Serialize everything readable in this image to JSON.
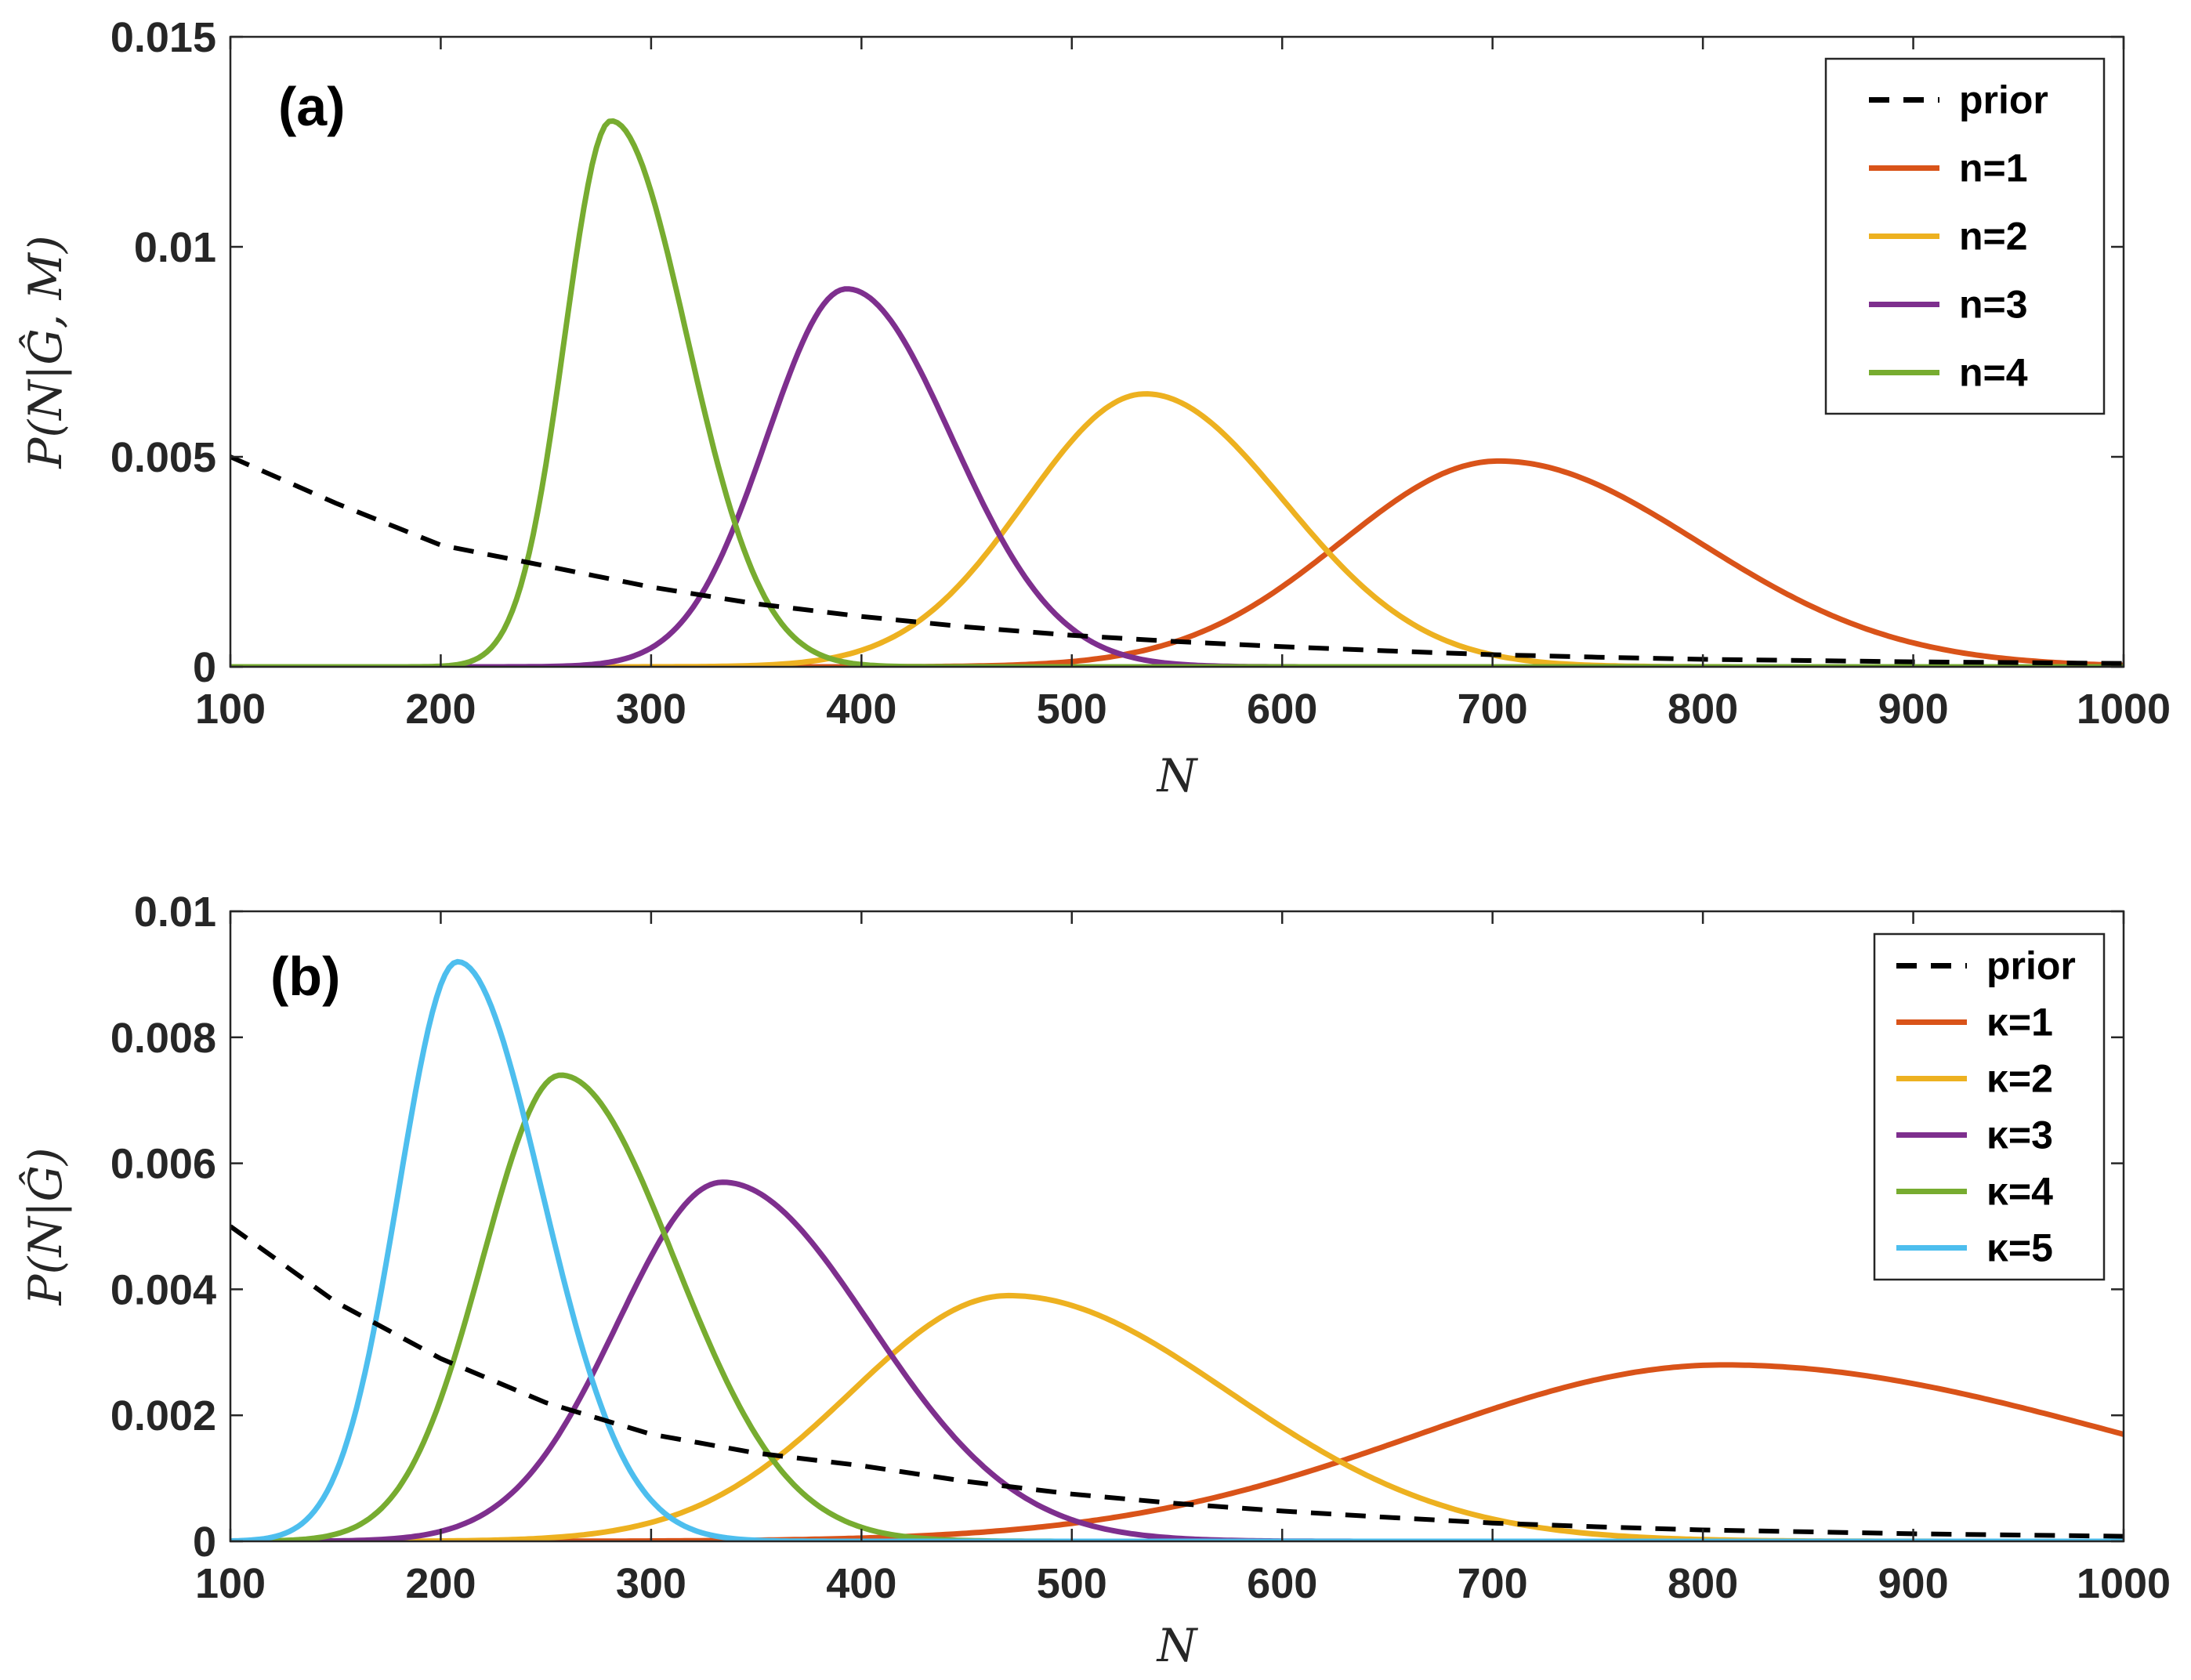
{
  "colors": {
    "prior": "#000000",
    "orange": "#D95319",
    "yellow": "#EDB120",
    "purple": "#7E2F8E",
    "green": "#77AC30",
    "cyan": "#4DBEEE",
    "axis": "#262626"
  },
  "chart_data": [
    {
      "id": "a",
      "type": "line",
      "panel_label": "(a)",
      "xlabel": "N",
      "ylabel": "P(N|Ĝ, M)",
      "xlim": [
        100,
        1000
      ],
      "ylim": [
        0,
        0.015
      ],
      "xticks": [
        100,
        200,
        300,
        400,
        500,
        600,
        700,
        800,
        900,
        1000
      ],
      "yticks": [
        0,
        0.005,
        0.01,
        0.015
      ],
      "ytick_labels": [
        "0",
        "0.005",
        "0.01",
        "0.015"
      ],
      "legend_position": "top-right",
      "prior": {
        "name": "prior",
        "style": "dashed",
        "x": [
          100,
          150,
          200,
          250,
          300,
          350,
          400,
          450,
          500,
          550,
          600,
          650,
          700,
          750,
          800,
          850,
          900,
          950,
          1000
        ],
        "y": [
          0.005,
          0.0039,
          0.0029,
          0.0024,
          0.0019,
          0.0015,
          0.0012,
          0.00095,
          0.00075,
          0.0006,
          0.00048,
          0.00038,
          0.00029,
          0.00023,
          0.00018,
          0.00015,
          0.00012,
          0.0001,
          8e-05
        ]
      },
      "series": [
        {
          "name": "n=1",
          "color_key": "orange",
          "peak_x": 703,
          "peak_y": 0.0049,
          "sigma_left": 75,
          "sigma_right": 95
        },
        {
          "name": "n=2",
          "color_key": "yellow",
          "peak_x": 535,
          "peak_y": 0.0065,
          "sigma_left": 57,
          "sigma_right": 66
        },
        {
          "name": "n=3",
          "color_key": "purple",
          "peak_x": 393,
          "peak_y": 0.009,
          "sigma_left": 38,
          "sigma_right": 50
        },
        {
          "name": "n=4",
          "color_key": "green",
          "peak_x": 281,
          "peak_y": 0.013,
          "sigma_left": 22,
          "sigma_right": 36
        }
      ]
    },
    {
      "id": "b",
      "type": "line",
      "panel_label": "(b)",
      "xlabel": "N",
      "ylabel": "P(N|Ĝ)",
      "xlim": [
        100,
        1000
      ],
      "ylim": [
        0,
        0.01
      ],
      "xticks": [
        100,
        200,
        300,
        400,
        500,
        600,
        700,
        800,
        900,
        1000
      ],
      "yticks": [
        0,
        0.002,
        0.004,
        0.006,
        0.008,
        0.01
      ],
      "ytick_labels": [
        "0",
        "0.002",
        "0.004",
        "0.006",
        "0.008",
        "0.01"
      ],
      "legend_position": "top-right",
      "prior": {
        "name": "prior",
        "style": "dashed",
        "x": [
          100,
          150,
          200,
          250,
          300,
          350,
          400,
          450,
          500,
          550,
          600,
          650,
          700,
          750,
          800,
          850,
          900,
          950,
          1000
        ],
        "y": [
          0.005,
          0.0038,
          0.0029,
          0.0022,
          0.0017,
          0.0014,
          0.0012,
          0.00095,
          0.00075,
          0.0006,
          0.00048,
          0.00038,
          0.00029,
          0.00023,
          0.00018,
          0.00015,
          0.00012,
          0.0001,
          8e-05
        ]
      },
      "series": [
        {
          "name": "κ=1",
          "color_key": "orange",
          "peak_x": 810,
          "peak_y": 0.0028,
          "sigma_left": 145,
          "sigma_right": 190
        },
        {
          "name": "κ=2",
          "color_key": "yellow",
          "peak_x": 470,
          "peak_y": 0.0039,
          "sigma_left": 75,
          "sigma_right": 105
        },
        {
          "name": "κ=3",
          "color_key": "purple",
          "peak_x": 334,
          "peak_y": 0.0057,
          "sigma_left": 50,
          "sigma_right": 70
        },
        {
          "name": "κ=4",
          "color_key": "green",
          "peak_x": 257,
          "peak_y": 0.0074,
          "sigma_left": 37,
          "sigma_right": 54
        },
        {
          "name": "κ=5",
          "color_key": "cyan",
          "peak_x": 208,
          "peak_y": 0.0092,
          "sigma_left": 28,
          "sigma_right": 40
        }
      ]
    }
  ]
}
